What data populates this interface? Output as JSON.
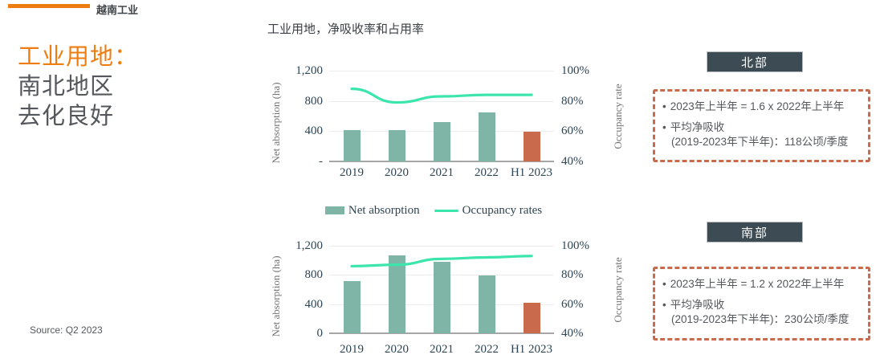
{
  "page": {
    "brand": "越南工业",
    "headline": {
      "line1": "工业用地：",
      "line2": "南北地区",
      "line3": "去化良好"
    },
    "chart_section_title": "工业用地，净吸收率和占用率",
    "source": "Source: Q2 2023"
  },
  "legend": {
    "bar_label": "Net absorption",
    "line_label": "Occupancy rates"
  },
  "regions": {
    "north": {
      "badge": "北部",
      "bullet1": "2023年上半年 = 1.6 x 2022年上半年",
      "bullet2_line1": "平均净吸收",
      "bullet2_line2": "(2019-2023年下半年)：118公顷/季度"
    },
    "south": {
      "badge": "南部",
      "bullet1": "2023年上半年 = 1.2 x 2022年上半年",
      "bullet2_line1": "平均净吸收",
      "bullet2_line2": "(2019-2023年下半年)：230公顷/季度"
    }
  },
  "colors": {
    "accent": "#EE7D11",
    "teal": "#7EB5A6",
    "mint": "#3CE5AC",
    "rust": "#C96A4C",
    "badge": "#3D4B54",
    "tick": "#2D4453",
    "axis_title": "#757575",
    "grid": "#ECECEC",
    "axisline": "#A6A6A6"
  },
  "chart_data": [
    {
      "region": "north",
      "type": "bar+line",
      "title": "工业用地，净吸收率和占用率",
      "categories": [
        "2019",
        "2020",
        "2021",
        "2022",
        "H1 2023"
      ],
      "series": [
        {
          "name": "Net absorption",
          "type": "bar",
          "axis": "left",
          "values": [
            410,
            415,
            520,
            650,
            395
          ]
        },
        {
          "name": "Occupancy rates",
          "type": "line",
          "axis": "right",
          "values": [
            88,
            79,
            83,
            84,
            84
          ]
        }
      ],
      "bar_colors": [
        "#7EB5A6",
        "#7EB5A6",
        "#7EB5A6",
        "#7EB5A6",
        "#C96A4C"
      ],
      "left_axis": {
        "label": "Net absorption (ha)",
        "range": [
          0,
          1200
        ],
        "ticks": [
          "1,200",
          "800",
          "400",
          "-"
        ]
      },
      "right_axis": {
        "label": "Occupancy rate",
        "range": [
          40,
          100
        ],
        "ticks": [
          "100%",
          "80%",
          "60%",
          "40%"
        ]
      },
      "grid": true,
      "legend_position": "below"
    },
    {
      "region": "south",
      "type": "bar+line",
      "title": "工业用地，净吸收率和占用率",
      "categories": [
        "2019",
        "2020",
        "2021",
        "2022",
        "H1 2023"
      ],
      "series": [
        {
          "name": "Net absorption",
          "type": "bar",
          "axis": "left",
          "values": [
            715,
            1070,
            985,
            790,
            415
          ]
        },
        {
          "name": "Occupancy rates",
          "type": "line",
          "axis": "right",
          "values": [
            86,
            87,
            91,
            92,
            93
          ]
        }
      ],
      "bar_colors": [
        "#7EB5A6",
        "#7EB5A6",
        "#7EB5A6",
        "#7EB5A6",
        "#C96A4C"
      ],
      "left_axis": {
        "label": "Net absorption (ha)",
        "range": [
          0,
          1200
        ],
        "ticks": [
          "1,200",
          "800",
          "400",
          "0"
        ]
      },
      "right_axis": {
        "label": "Occupancy rate",
        "range": [
          40,
          100
        ],
        "ticks": [
          "100%",
          "80%",
          "60%",
          "40%"
        ]
      },
      "grid": true,
      "legend_position": "none"
    }
  ]
}
